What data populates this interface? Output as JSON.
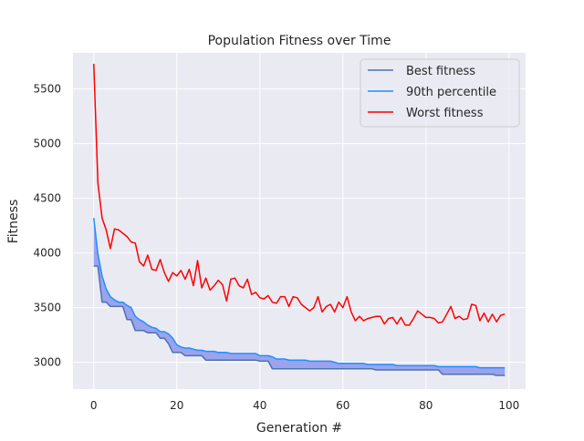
{
  "chart_data": {
    "type": "line",
    "title": "Population Fitness over Time",
    "xlabel": "Generation #",
    "ylabel": "Fitness",
    "xlim": [
      -5,
      104
    ],
    "ylim": [
      2755,
      5830
    ],
    "xticks": [
      0,
      20,
      40,
      60,
      80,
      100
    ],
    "yticks": [
      3000,
      3500,
      4000,
      4500,
      5000,
      5500
    ],
    "grid": true,
    "legend_position": "top-right",
    "shaded_band_between": [
      "90th percentile",
      "Best fitness"
    ],
    "shaded_band_color": "#9aa3ee",
    "x": [
      0,
      1,
      2,
      3,
      4,
      5,
      6,
      7,
      8,
      9,
      10,
      11,
      12,
      13,
      14,
      15,
      16,
      17,
      18,
      19,
      20,
      21,
      22,
      23,
      24,
      25,
      26,
      27,
      28,
      29,
      30,
      31,
      32,
      33,
      34,
      35,
      36,
      37,
      38,
      39,
      40,
      41,
      42,
      43,
      44,
      45,
      46,
      47,
      48,
      49,
      50,
      51,
      52,
      53,
      54,
      55,
      56,
      57,
      58,
      59,
      60,
      61,
      62,
      63,
      64,
      65,
      66,
      67,
      68,
      69,
      70,
      71,
      72,
      73,
      74,
      75,
      76,
      77,
      78,
      79,
      80,
      81,
      82,
      83,
      84,
      85,
      86,
      87,
      88,
      89,
      90,
      91,
      92,
      93,
      94,
      95,
      96,
      97,
      98,
      99
    ],
    "series": [
      {
        "name": "Best fitness",
        "color": "#4c72b0",
        "values": [
          3880,
          3880,
          3550,
          3550,
          3510,
          3510,
          3510,
          3510,
          3390,
          3390,
          3290,
          3290,
          3290,
          3270,
          3270,
          3270,
          3220,
          3220,
          3170,
          3090,
          3090,
          3090,
          3060,
          3060,
          3060,
          3060,
          3060,
          3020,
          3020,
          3020,
          3020,
          3020,
          3020,
          3020,
          3020,
          3020,
          3020,
          3020,
          3020,
          3020,
          3010,
          3010,
          3010,
          2940,
          2940,
          2940,
          2940,
          2940,
          2940,
          2940,
          2940,
          2940,
          2940,
          2940,
          2940,
          2940,
          2940,
          2940,
          2940,
          2940,
          2940,
          2940,
          2940,
          2940,
          2940,
          2940,
          2940,
          2940,
          2930,
          2930,
          2930,
          2930,
          2930,
          2930,
          2930,
          2930,
          2930,
          2930,
          2930,
          2930,
          2930,
          2930,
          2930,
          2930,
          2890,
          2890,
          2890,
          2890,
          2890,
          2890,
          2890,
          2890,
          2890,
          2890,
          2890,
          2890,
          2890,
          2880,
          2880,
          2880
        ]
      },
      {
        "name": "90th percentile",
        "color": "#1e90ff",
        "values": [
          4320,
          3990,
          3790,
          3670,
          3600,
          3570,
          3550,
          3550,
          3520,
          3500,
          3420,
          3390,
          3370,
          3340,
          3320,
          3310,
          3280,
          3280,
          3260,
          3220,
          3160,
          3140,
          3130,
          3130,
          3120,
          3110,
          3110,
          3100,
          3100,
          3100,
          3090,
          3090,
          3090,
          3080,
          3080,
          3080,
          3080,
          3080,
          3080,
          3080,
          3060,
          3060,
          3060,
          3050,
          3030,
          3030,
          3030,
          3020,
          3020,
          3020,
          3020,
          3020,
          3010,
          3010,
          3010,
          3010,
          3010,
          3010,
          3000,
          2990,
          2990,
          2990,
          2990,
          2990,
          2990,
          2990,
          2980,
          2980,
          2980,
          2980,
          2980,
          2980,
          2980,
          2970,
          2970,
          2970,
          2970,
          2970,
          2970,
          2970,
          2970,
          2970,
          2970,
          2960,
          2960,
          2960,
          2960,
          2960,
          2960,
          2960,
          2960,
          2960,
          2960,
          2950,
          2950,
          2950,
          2950,
          2950,
          2950,
          2950
        ]
      },
      {
        "name": "Worst fitness",
        "color": "#ff0000",
        "values": [
          5730,
          4640,
          4320,
          4210,
          4040,
          4220,
          4210,
          4180,
          4150,
          4100,
          4090,
          3920,
          3880,
          3980,
          3850,
          3840,
          3940,
          3820,
          3740,
          3820,
          3790,
          3840,
          3760,
          3850,
          3700,
          3930,
          3680,
          3770,
          3660,
          3700,
          3750,
          3710,
          3560,
          3760,
          3770,
          3700,
          3680,
          3760,
          3620,
          3640,
          3590,
          3580,
          3610,
          3550,
          3540,
          3600,
          3600,
          3510,
          3600,
          3590,
          3530,
          3500,
          3470,
          3500,
          3600,
          3460,
          3510,
          3530,
          3460,
          3550,
          3500,
          3600,
          3460,
          3380,
          3420,
          3380,
          3400,
          3410,
          3420,
          3420,
          3350,
          3400,
          3410,
          3350,
          3410,
          3340,
          3340,
          3400,
          3470,
          3440,
          3410,
          3410,
          3400,
          3360,
          3370,
          3440,
          3510,
          3400,
          3420,
          3390,
          3400,
          3530,
          3520,
          3380,
          3450,
          3370,
          3440,
          3370,
          3430,
          3440
        ]
      }
    ]
  }
}
